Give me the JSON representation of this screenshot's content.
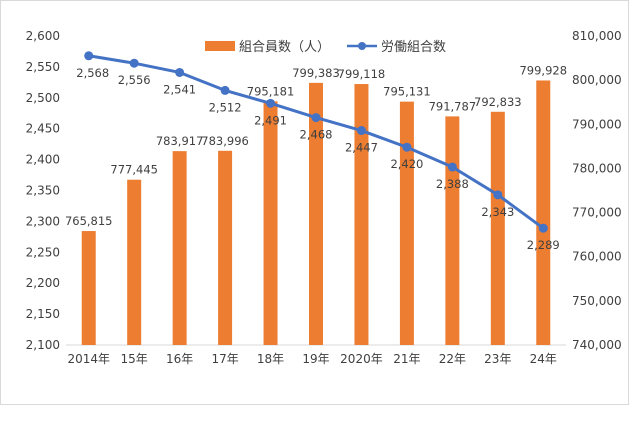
{
  "chart_data": {
    "type": "bar",
    "categories": [
      "2014年",
      "15年",
      "16年",
      "17年",
      "18年",
      "19年",
      "2020年",
      "21年",
      "22年",
      "23年",
      "24年"
    ],
    "series": [
      {
        "name": "組合員数（人）",
        "chart_type": "bar",
        "axis": "right",
        "color": "#ed7d31",
        "values": [
          765815,
          777445,
          783917,
          783996,
          795181,
          799383,
          799118,
          795131,
          791787,
          792833,
          799928
        ],
        "labels": [
          "765,815",
          "777,445",
          "783,917",
          "783,996",
          "795,181",
          "799,383",
          "799,118",
          "795,131",
          "791,787",
          "792,833",
          "799,928"
        ]
      },
      {
        "name": "労働組合数",
        "chart_type": "line",
        "axis": "left",
        "color": "#4472c4",
        "values": [
          2568,
          2556,
          2541,
          2512,
          2491,
          2468,
          2447,
          2420,
          2388,
          2343,
          2289
        ],
        "labels": [
          "2,568",
          "2,556",
          "2,541",
          "2,512",
          "2,491",
          "2,468",
          "2,447",
          "2,420",
          "2,388",
          "2,343",
          "2,289"
        ]
      }
    ],
    "y_left": {
      "min": 2100,
      "max": 2600,
      "ticks": [
        "2,100",
        "2,150",
        "2,200",
        "2,250",
        "2,300",
        "2,350",
        "2,400",
        "2,450",
        "2,500",
        "2,550",
        "2,600"
      ]
    },
    "y_right": {
      "min": 740000,
      "max": 810000,
      "ticks": [
        "740,000",
        "750,000",
        "760,000",
        "770,000",
        "780,000",
        "790,000",
        "800,000",
        "810,000"
      ]
    },
    "legend_position": "top",
    "grid": false
  }
}
